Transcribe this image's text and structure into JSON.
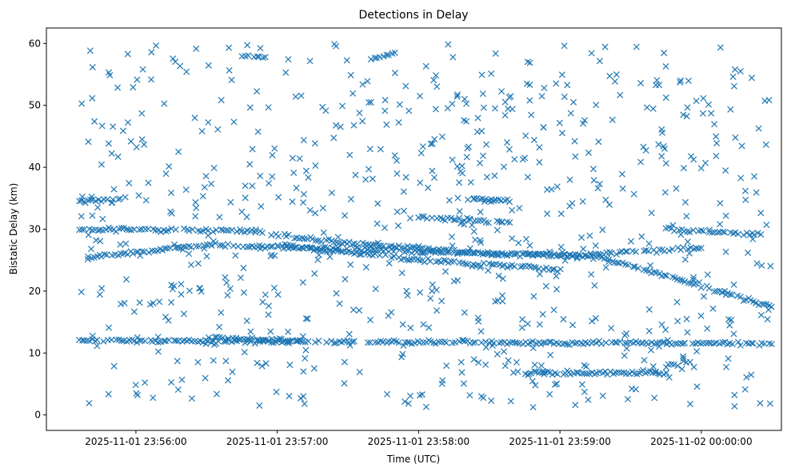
{
  "chart_data": {
    "type": "scatter",
    "title": "Detections in Delay",
    "xlabel": "Time (UTC)",
    "ylabel": "Bistatic Delay (km)",
    "marker": "x",
    "color": "#1f77b4",
    "grid": false,
    "x_axis": {
      "type": "time",
      "range": [
        "2025-11-01 23:55:22",
        "2025-11-02 00:00:34"
      ],
      "ticks": [
        {
          "value": "2025-11-01 23:56:00",
          "label": "2025-11-01 23:56:00"
        },
        {
          "value": "2025-11-01 23:57:00",
          "label": "2025-11-01 23:57:00"
        },
        {
          "value": "2025-11-01 23:58:00",
          "label": "2025-11-01 23:58:00"
        },
        {
          "value": "2025-11-01 23:59:00",
          "label": "2025-11-01 23:59:00"
        },
        {
          "value": "2025-11-02 00:00:00",
          "label": "2025-11-02 00:00:00"
        }
      ]
    },
    "y_axis": {
      "range": [
        -2.5,
        62.5
      ],
      "ticks": [
        {
          "value": 0,
          "label": "0"
        },
        {
          "value": 10,
          "label": "10"
        },
        {
          "value": 20,
          "label": "20"
        },
        {
          "value": 30,
          "label": "30"
        },
        {
          "value": 40,
          "label": "40"
        },
        {
          "value": 50,
          "label": "50"
        },
        {
          "value": 60,
          "label": "60"
        }
      ]
    },
    "time_span": [
      "2025-11-01 23:55:36",
      "2025-11-02 00:00:30"
    ],
    "tracks": [
      {
        "points": [
          [
            "2025-11-01 23:55:36",
            12.0
          ],
          [
            "2025-11-02 00:00:30",
            11.5
          ]
        ]
      },
      {
        "points": [
          [
            "2025-11-01 23:55:36",
            30.0
          ],
          [
            "2025-11-01 23:56:45",
            29.8
          ],
          [
            "2025-11-01 23:57:30",
            27.8
          ],
          [
            "2025-11-01 23:58:30",
            26.0
          ],
          [
            "2025-11-01 23:59:15",
            25.7
          ],
          [
            "2025-11-02 00:00:30",
            17.5
          ]
        ]
      },
      {
        "points": [
          [
            "2025-11-01 23:55:40",
            25.5
          ],
          [
            "2025-11-01 23:56:30",
            27.5
          ],
          [
            "2025-11-01 23:57:30",
            26.8
          ],
          [
            "2025-11-01 23:58:30",
            26.0
          ],
          [
            "2025-11-01 23:59:10",
            25.8
          ],
          [
            "2025-11-02 00:00:00",
            27.0
          ]
        ]
      },
      {
        "points": [
          [
            "2025-11-01 23:57:00",
            27.5
          ],
          [
            "2025-11-01 23:58:00",
            25.0
          ],
          [
            "2025-11-01 23:59:00",
            23.5
          ]
        ]
      },
      {
        "points": [
          [
            "2025-11-01 23:55:36",
            34.5
          ],
          [
            "2025-11-01 23:55:50",
            34.8
          ]
        ]
      },
      {
        "points": [
          [
            "2025-11-01 23:58:25",
            34.8
          ],
          [
            "2025-11-01 23:58:40",
            34.6
          ]
        ]
      },
      {
        "points": [
          [
            "2025-11-01 23:58:00",
            32.0
          ],
          [
            "2025-11-01 23:58:40",
            31.0
          ]
        ]
      },
      {
        "points": [
          [
            "2025-11-01 23:59:45",
            30.0
          ],
          [
            "2025-11-02 00:00:25",
            29.2
          ]
        ]
      },
      {
        "points": [
          [
            "2025-11-01 23:58:40",
            6.8
          ],
          [
            "2025-11-01 23:59:45",
            6.8
          ]
        ]
      },
      {
        "points": [
          [
            "2025-11-01 23:59:45",
            8.0
          ],
          [
            "2025-11-01 23:59:55",
            8.5
          ]
        ]
      },
      {
        "points": [
          [
            "2025-11-01 23:56:45",
            58.0
          ],
          [
            "2025-11-01 23:56:55",
            57.8
          ]
        ]
      },
      {
        "points": [
          [
            "2025-11-01 23:57:40",
            57.5
          ],
          [
            "2025-11-01 23:57:50",
            58.5
          ]
        ]
      },
      {
        "points": [
          [
            "2025-11-01 23:56:30",
            12.5
          ],
          [
            "2025-11-01 23:57:10",
            12.0
          ]
        ]
      }
    ]
  }
}
